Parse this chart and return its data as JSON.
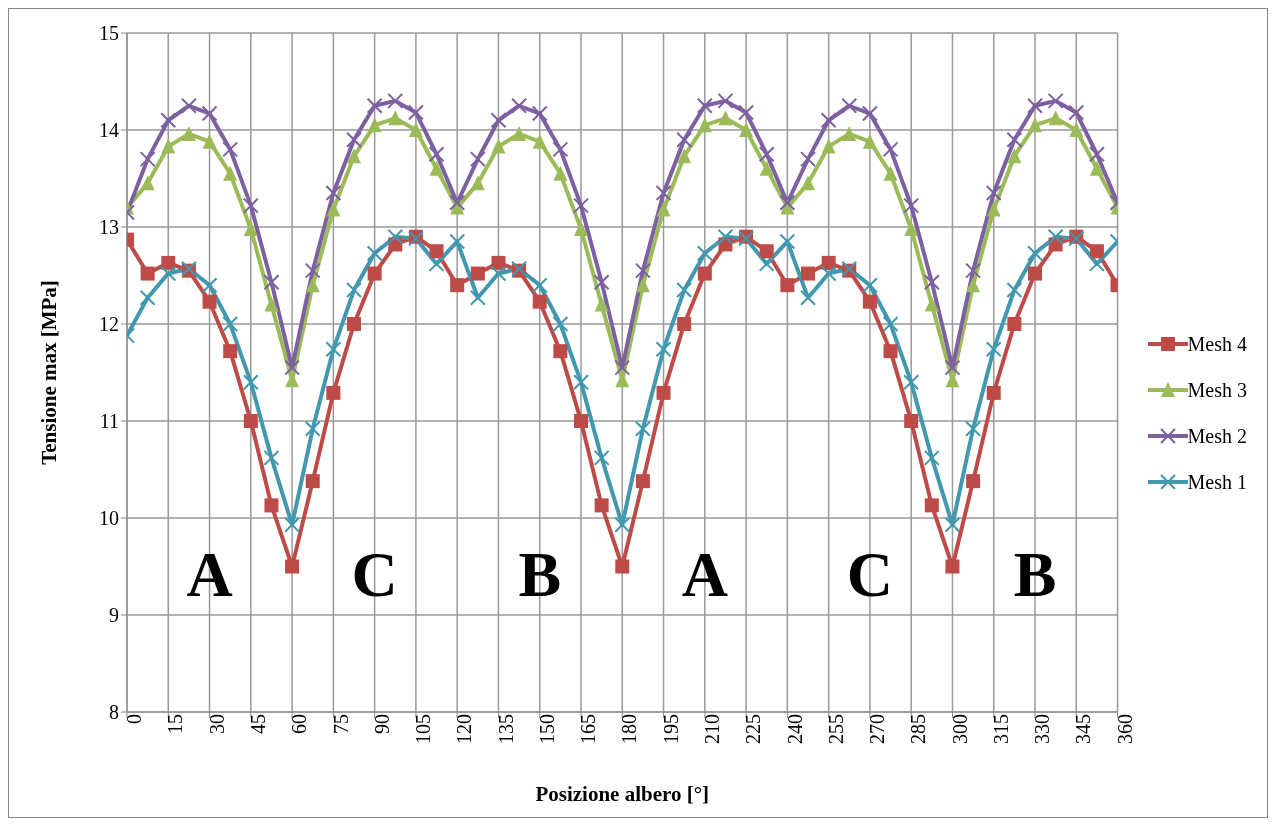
{
  "chart_data": {
    "type": "line",
    "xlabel": "Posizione albero [°]",
    "ylabel": "Tensione max [MPa]",
    "x": [
      0,
      7.5,
      15,
      22.5,
      30,
      37.5,
      45,
      52.5,
      60,
      67.5,
      75,
      82.5,
      90,
      97.5,
      105,
      112.5,
      120,
      127.5,
      135,
      142.5,
      150,
      157.5,
      165,
      172.5,
      180,
      187.5,
      195,
      202.5,
      210,
      217.5,
      225,
      232.5,
      240,
      247.5,
      255,
      262.5,
      270,
      277.5,
      285,
      292.5,
      300,
      307.5,
      315,
      322.5,
      330,
      337.5,
      345,
      352.5,
      360
    ],
    "series": [
      {
        "name": "Mesh 4",
        "color": "#be4b48",
        "marker": "square",
        "values": [
          12.87,
          12.52,
          12.63,
          12.55,
          12.23,
          11.72,
          11.0,
          10.13,
          9.5,
          10.38,
          11.29,
          12.0,
          12.52,
          12.82,
          12.9,
          12.75,
          12.4,
          12.52,
          12.63,
          12.55,
          12.23,
          11.72,
          11.0,
          10.13,
          9.5,
          10.38,
          11.29,
          12.0,
          12.52,
          12.82,
          12.9,
          12.75,
          12.4,
          12.52,
          12.63,
          12.55,
          12.23,
          11.72,
          11.0,
          10.13,
          9.5,
          10.38,
          11.29,
          12.0,
          12.52,
          12.82,
          12.9,
          12.75,
          12.4
        ]
      },
      {
        "name": "Mesh 3",
        "color": "#9bbb59",
        "marker": "triangle",
        "values": [
          13.2,
          13.45,
          13.83,
          13.96,
          13.88,
          13.55,
          12.98,
          12.2,
          11.42,
          12.4,
          13.18,
          13.73,
          14.05,
          14.12,
          14.0,
          13.6,
          13.2,
          13.45,
          13.83,
          13.96,
          13.88,
          13.55,
          12.98,
          12.2,
          11.42,
          12.4,
          13.18,
          13.73,
          14.05,
          14.12,
          14.0,
          13.6,
          13.2,
          13.45,
          13.83,
          13.96,
          13.88,
          13.55,
          12.98,
          12.2,
          11.42,
          12.4,
          13.18,
          13.73,
          14.05,
          14.12,
          14.0,
          13.6,
          13.2
        ]
      },
      {
        "name": "Mesh 2",
        "color": "#7d60a0",
        "marker": "cross",
        "values": [
          13.15,
          13.7,
          14.1,
          14.25,
          14.17,
          13.8,
          13.22,
          12.43,
          11.55,
          12.55,
          13.35,
          13.9,
          14.25,
          14.3,
          14.18,
          13.75,
          13.25,
          13.7,
          14.1,
          14.25,
          14.17,
          13.8,
          13.22,
          12.43,
          11.55,
          12.55,
          13.35,
          13.9,
          14.25,
          14.3,
          14.18,
          13.75,
          13.25,
          13.7,
          14.1,
          14.25,
          14.17,
          13.8,
          13.22,
          12.43,
          11.55,
          12.55,
          13.35,
          13.9,
          14.25,
          14.3,
          14.18,
          13.75,
          13.25
        ]
      },
      {
        "name": "Mesh 1",
        "color": "#4198af",
        "marker": "cross",
        "values": [
          11.88,
          12.27,
          12.52,
          12.57,
          12.4,
          12.0,
          11.4,
          10.62,
          9.93,
          10.92,
          11.74,
          12.35,
          12.73,
          12.9,
          12.88,
          12.62,
          12.85,
          12.27,
          12.52,
          12.57,
          12.4,
          12.0,
          11.4,
          10.62,
          9.93,
          10.92,
          11.74,
          12.35,
          12.73,
          12.9,
          12.88,
          12.62,
          12.85,
          12.27,
          12.52,
          12.57,
          12.4,
          12.0,
          11.4,
          10.62,
          9.93,
          10.92,
          11.74,
          12.35,
          12.73,
          12.9,
          12.88,
          12.62,
          12.85
        ]
      }
    ],
    "xlim": [
      0,
      360
    ],
    "xticks": [
      0,
      15,
      30,
      45,
      60,
      75,
      90,
      105,
      120,
      135,
      150,
      165,
      180,
      195,
      210,
      225,
      240,
      255,
      270,
      285,
      300,
      315,
      330,
      345,
      360
    ],
    "ylim": [
      8,
      15
    ],
    "yticks": [
      8,
      9,
      10,
      11,
      12,
      13,
      14,
      15
    ],
    "grid": true,
    "legend": "right",
    "line_style": "solid",
    "annotations": [
      "A",
      "C",
      "B",
      "A",
      "C",
      "B"
    ]
  }
}
